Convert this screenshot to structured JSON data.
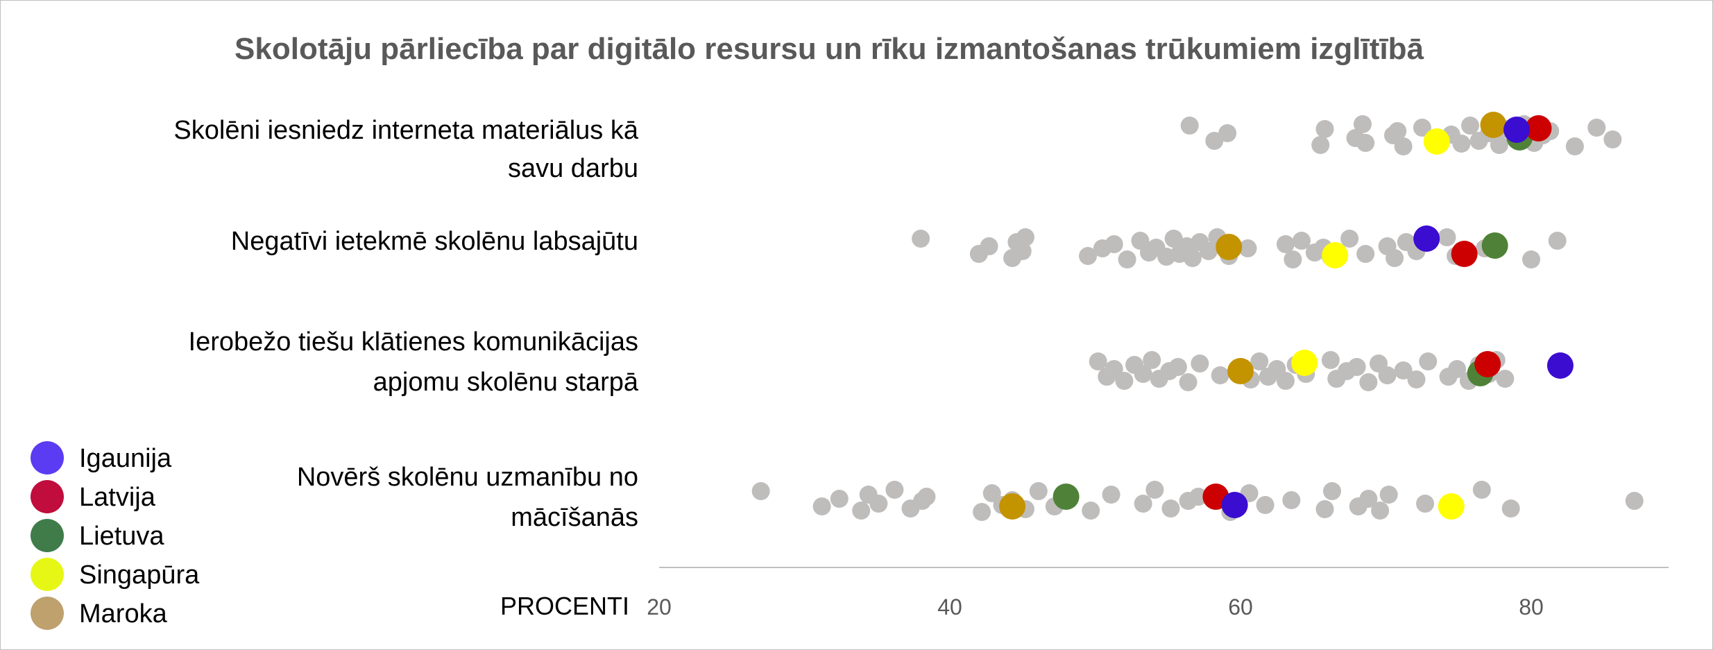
{
  "chart_data": {
    "type": "scatter",
    "title": "Skolotāju pārliecība par digitālo resursu un rīku izmantošanas trūkumiem izglītībā",
    "xlabel": "PROCENTI",
    "xlim": [
      20,
      90
    ],
    "xticks": [
      20,
      40,
      60,
      80
    ],
    "grid": false,
    "legend_position": "bottom-left",
    "categories": [
      [
        "Skolēni iesniedz interneta materiālus kā",
        "savu darbu"
      ],
      [
        "Negatīvi ietekmē skolēnu labsajūtu"
      ],
      [
        "Ierobežo tiešu klātienes komunikācijas",
        "apjomu skolēnu starpā"
      ],
      [
        "Novērš skolēnu uzmanību no",
        "mācīšanās"
      ]
    ],
    "other_countries": {
      "color": "#bfbdbc",
      "values": [
        [
          56.5,
          58.2,
          59.1,
          65.5,
          65.8,
          67.9,
          68.4,
          68.6,
          70.5,
          70.8,
          71.2,
          72.5,
          73.8,
          74.5,
          75.2,
          75.8,
          76.4,
          77.1,
          77.8,
          78.2,
          78.9,
          79.5,
          80.2,
          80.8,
          81.3,
          83.0,
          84.5,
          85.6
        ],
        [
          38.0,
          42.0,
          42.7,
          44.3,
          44.6,
          45.0,
          45.2,
          49.5,
          50.5,
          51.3,
          52.2,
          53.1,
          53.7,
          54.2,
          54.9,
          55.4,
          55.8,
          56.3,
          56.7,
          57.2,
          57.8,
          58.4,
          59.2,
          60.5,
          63.1,
          63.6,
          64.2,
          65.1,
          65.7,
          66.2,
          67.5,
          68.6,
          70.1,
          70.6,
          71.4,
          72.1,
          74.2,
          74.8,
          76.8,
          77.4,
          80.0,
          81.8
        ],
        [
          50.2,
          50.8,
          51.3,
          52.0,
          52.7,
          53.3,
          53.9,
          54.4,
          55.1,
          55.7,
          56.4,
          57.2,
          58.6,
          60.1,
          60.7,
          61.3,
          61.9,
          62.5,
          63.1,
          63.8,
          64.5,
          66.2,
          66.6,
          67.3,
          68.0,
          68.8,
          69.5,
          70.1,
          71.2,
          72.1,
          72.9,
          74.3,
          74.9,
          75.7,
          76.4,
          77.1,
          77.6,
          78.2
        ],
        [
          27.0,
          31.2,
          32.4,
          33.9,
          34.4,
          35.1,
          36.2,
          37.3,
          38.1,
          38.4,
          42.2,
          42.9,
          43.6,
          44.3,
          45.2,
          46.1,
          47.2,
          48.1,
          49.7,
          51.1,
          53.3,
          54.1,
          55.2,
          56.4,
          57.1,
          59.3,
          60.6,
          61.7,
          63.5,
          65.8,
          66.3,
          68.1,
          68.8,
          69.6,
          70.2,
          72.7,
          76.6,
          78.6,
          87.1
        ]
      ]
    },
    "series": [
      {
        "name": "Igaunija",
        "color": "#3a0dd0",
        "legend_color": "#5b3cf3",
        "values": [
          79.0,
          72.8,
          82.0,
          59.6
        ]
      },
      {
        "name": "Latvija",
        "color": "#cc0000",
        "legend_color": "#c00d3e",
        "values": [
          80.5,
          75.4,
          77.0,
          58.3
        ]
      },
      {
        "name": "Lietuva",
        "color": "#4f8238",
        "legend_color": "#3f7c4a",
        "values": [
          79.2,
          77.5,
          76.5,
          48.0
        ]
      },
      {
        "name": "Singapūra",
        "color": "#ffff00",
        "legend_color": "#e6f716",
        "values": [
          73.5,
          66.5,
          64.4,
          74.5
        ]
      },
      {
        "name": "Maroka",
        "color": "#c49300",
        "legend_color": "#bfa16e",
        "values": [
          77.4,
          59.2,
          60.0,
          44.3
        ]
      }
    ]
  }
}
